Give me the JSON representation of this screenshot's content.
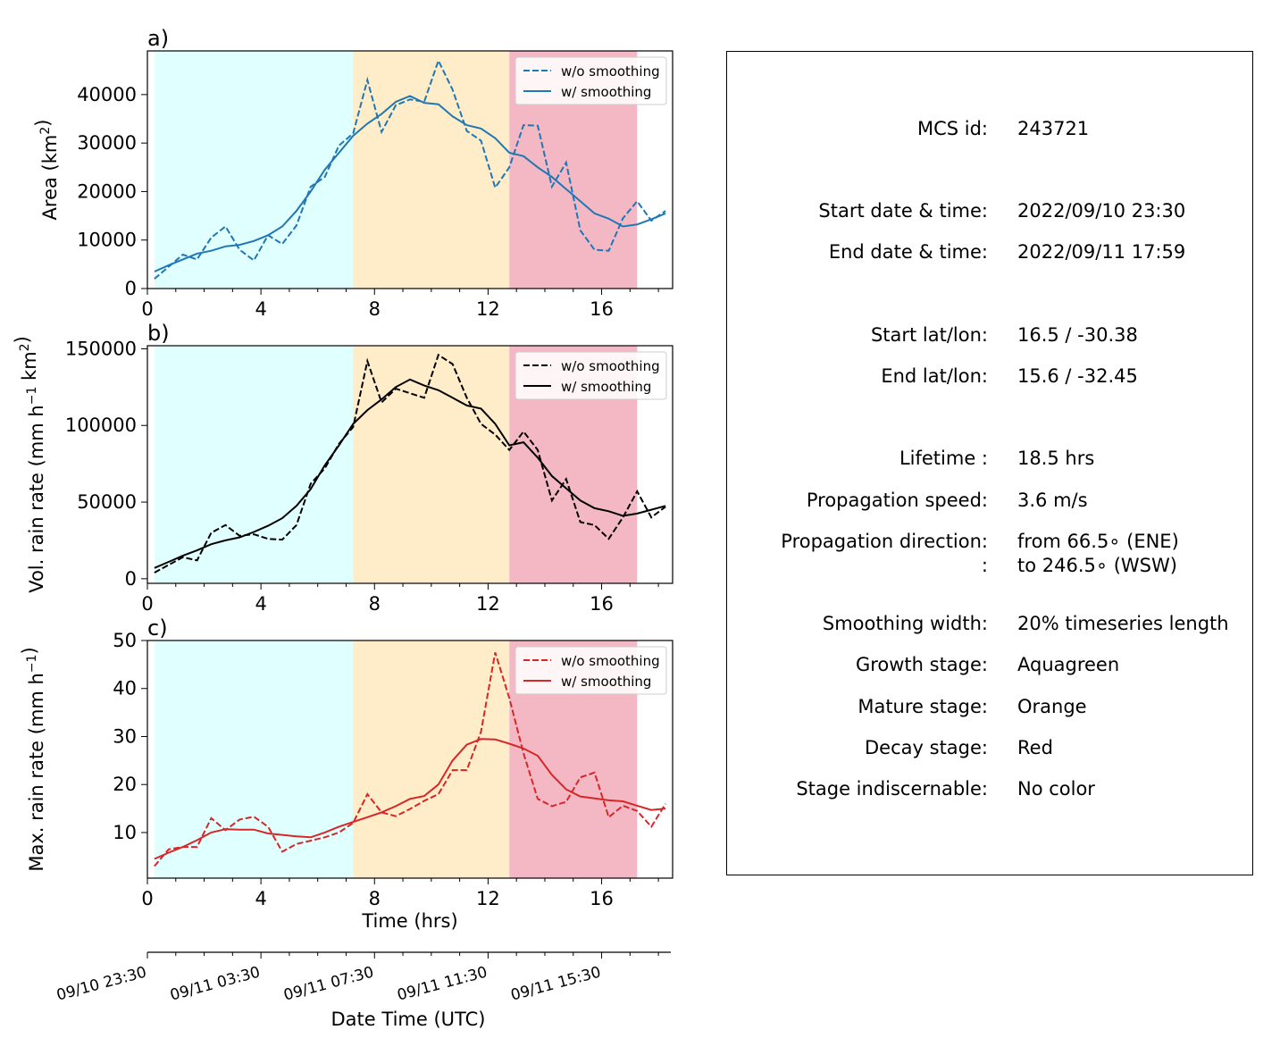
{
  "colors": {
    "growth": "#e0ffff",
    "mature": "#ffecc8",
    "decay": "#f4b8c4",
    "series_a": "#1f77b4",
    "series_b": "#000000",
    "series_c": "#d62728"
  },
  "chart_data": [
    {
      "type": "line",
      "panel_label": "a)",
      "ylabel": "Area  (km²)",
      "xlim": [
        0,
        18.5
      ],
      "ylim": [
        0,
        49000
      ],
      "yticks": [
        0,
        10000,
        20000,
        30000,
        40000
      ],
      "xticks": [
        0,
        4,
        8,
        12,
        16
      ],
      "stages": [
        {
          "name": "growth",
          "x0": 0.25,
          "x1": 7.25
        },
        {
          "name": "mature",
          "x0": 7.25,
          "x1": 12.75
        },
        {
          "name": "decay",
          "x0": 12.75,
          "x1": 17.25
        }
      ],
      "legend": "top-right",
      "series": [
        {
          "name": "w/o smoothing",
          "style": "dashed",
          "x": [
            0.25,
            0.75,
            1.25,
            1.75,
            2.25,
            2.75,
            3.25,
            3.75,
            4.25,
            4.75,
            5.25,
            5.75,
            6.25,
            6.75,
            7.25,
            7.75,
            8.25,
            8.75,
            9.25,
            9.75,
            10.25,
            10.75,
            11.25,
            11.75,
            12.25,
            12.75,
            13.25,
            13.75,
            14.25,
            14.75,
            15.25,
            15.75,
            16.25,
            16.75,
            17.25,
            17.75,
            18.25
          ],
          "y": [
            2000,
            4500,
            7000,
            6000,
            10500,
            12800,
            8000,
            5800,
            11000,
            9200,
            13000,
            21000,
            23000,
            29500,
            32000,
            43000,
            32300,
            37800,
            39000,
            38500,
            47000,
            41000,
            32500,
            30500,
            20800,
            25000,
            33700,
            33600,
            21000,
            26000,
            12000,
            8000,
            7800,
            14500,
            18000,
            14000,
            16000
          ]
        },
        {
          "name": "w/ smoothing",
          "style": "solid",
          "x": [
            0.25,
            0.75,
            1.25,
            1.75,
            2.25,
            2.75,
            3.25,
            3.75,
            4.25,
            4.75,
            5.25,
            5.75,
            6.25,
            6.75,
            7.25,
            7.75,
            8.25,
            8.75,
            9.25,
            9.75,
            10.25,
            10.75,
            11.25,
            11.75,
            12.25,
            12.75,
            13.25,
            13.75,
            14.25,
            14.75,
            15.25,
            15.75,
            16.25,
            16.75,
            17.25,
            17.75,
            18.25
          ],
          "y": [
            3500,
            4800,
            6000,
            7200,
            7800,
            8700,
            9000,
            9800,
            11000,
            12800,
            16000,
            20000,
            24500,
            28000,
            31500,
            34000,
            36000,
            38500,
            39700,
            38300,
            38000,
            35500,
            33700,
            33000,
            31000,
            28000,
            27300,
            25000,
            23000,
            20500,
            18000,
            15500,
            14400,
            12800,
            13200,
            14300,
            15500
          ]
        }
      ]
    },
    {
      "type": "line",
      "panel_label": "b)",
      "ylabel": "Vol. rain rate (mm h⁻¹ km²)",
      "xlim": [
        0,
        18.5
      ],
      "ylim": [
        -3000,
        152000
      ],
      "yticks": [
        0,
        50000,
        100000,
        150000
      ],
      "xticks": [
        0,
        4,
        8,
        12,
        16
      ],
      "stages": [
        {
          "name": "growth",
          "x0": 0.25,
          "x1": 7.25
        },
        {
          "name": "mature",
          "x0": 7.25,
          "x1": 12.75
        },
        {
          "name": "decay",
          "x0": 12.75,
          "x1": 17.25
        }
      ],
      "legend": "top-right",
      "series": [
        {
          "name": "w/o smoothing",
          "style": "dashed",
          "x": [
            0.25,
            0.75,
            1.25,
            1.75,
            2.25,
            2.75,
            3.25,
            3.75,
            4.25,
            4.75,
            5.25,
            5.75,
            6.25,
            6.75,
            7.25,
            7.75,
            8.25,
            8.75,
            9.25,
            9.75,
            10.25,
            10.75,
            11.25,
            11.75,
            12.25,
            12.75,
            13.25,
            13.75,
            14.25,
            14.75,
            15.25,
            15.75,
            16.25,
            16.75,
            17.25,
            17.75,
            18.25
          ],
          "y": [
            4000,
            9000,
            14000,
            12000,
            30000,
            35000,
            28000,
            29000,
            26000,
            25500,
            35000,
            62000,
            72000,
            88000,
            99000,
            142000,
            115000,
            124000,
            121000,
            118000,
            146000,
            140000,
            118000,
            101000,
            94000,
            84000,
            96000,
            84000,
            51000,
            65000,
            37000,
            35000,
            26000,
            40000,
            57000,
            40000,
            47000
          ]
        },
        {
          "name": "w/ smoothing",
          "style": "solid",
          "x": [
            0.25,
            0.75,
            1.25,
            1.75,
            2.25,
            2.75,
            3.25,
            3.75,
            4.25,
            4.75,
            5.25,
            5.75,
            6.25,
            6.75,
            7.25,
            7.75,
            8.25,
            8.75,
            9.25,
            9.75,
            10.25,
            10.75,
            11.25,
            11.75,
            12.25,
            12.75,
            13.25,
            13.75,
            14.25,
            14.75,
            15.25,
            15.75,
            16.25,
            16.75,
            17.25,
            17.75,
            18.25
          ],
          "y": [
            7000,
            11000,
            15000,
            18500,
            22500,
            25000,
            27000,
            30500,
            34500,
            39500,
            47500,
            58500,
            74000,
            87000,
            101000,
            110000,
            117000,
            125000,
            130000,
            126000,
            123000,
            118000,
            113000,
            111000,
            101000,
            87000,
            89000,
            79000,
            67000,
            59000,
            51000,
            46000,
            44000,
            41000,
            42500,
            45000,
            47500
          ]
        }
      ]
    },
    {
      "type": "line",
      "panel_label": "c)",
      "ylabel": "Max. rain rate  (mm h⁻¹)",
      "xlabel": "Time (hrs)",
      "xlim": [
        0,
        18.5
      ],
      "ylim": [
        0.5,
        50
      ],
      "yticks": [
        10,
        20,
        30,
        40,
        50
      ],
      "xticks": [
        0,
        4,
        8,
        12,
        16
      ],
      "stages": [
        {
          "name": "growth",
          "x0": 0.25,
          "x1": 7.25
        },
        {
          "name": "mature",
          "x0": 7.25,
          "x1": 12.75
        },
        {
          "name": "decay",
          "x0": 12.75,
          "x1": 17.25
        }
      ],
      "legend": "top-right",
      "series": [
        {
          "name": "w/o smoothing",
          "style": "dashed",
          "x": [
            0.25,
            0.75,
            1.25,
            1.75,
            2.25,
            2.75,
            3.25,
            3.75,
            4.25,
            4.75,
            5.25,
            5.75,
            6.25,
            6.75,
            7.25,
            7.75,
            8.25,
            8.75,
            9.25,
            9.75,
            10.25,
            10.75,
            11.25,
            11.75,
            12.25,
            12.75,
            13.25,
            13.75,
            14.25,
            14.75,
            15.25,
            15.75,
            16.25,
            16.75,
            17.25,
            17.75,
            18.25
          ],
          "y": [
            3,
            6.5,
            7,
            7,
            13,
            10.5,
            12.7,
            13.3,
            11.2,
            6,
            7.6,
            8.3,
            9,
            10,
            12,
            18,
            14.2,
            13.4,
            14.9,
            16.6,
            18,
            23,
            23,
            31,
            47.5,
            38,
            26.5,
            17,
            15.5,
            16.4,
            21.5,
            22.5,
            13.2,
            15.6,
            14.5,
            11.2,
            16
          ]
        },
        {
          "name": "w/ smoothing",
          "style": "solid",
          "x": [
            0.25,
            0.75,
            1.25,
            1.75,
            2.25,
            2.75,
            3.25,
            3.75,
            4.25,
            4.75,
            5.25,
            5.75,
            6.25,
            6.75,
            7.25,
            7.75,
            8.25,
            8.75,
            9.25,
            9.75,
            10.25,
            10.75,
            11.25,
            11.75,
            12.25,
            12.75,
            13.25,
            13.75,
            14.25,
            14.75,
            15.25,
            15.75,
            16.25,
            16.75,
            17.25,
            17.75,
            18.25
          ],
          "y": [
            4.5,
            5.8,
            7,
            8.4,
            10,
            10.7,
            10.6,
            10.6,
            9.8,
            9.5,
            9.2,
            9.0,
            10,
            11.2,
            12.2,
            13.2,
            14.2,
            15.5,
            17,
            17.6,
            20,
            25,
            28.3,
            29.5,
            29.4,
            28.5,
            27.5,
            26,
            22,
            19,
            17.5,
            17.1,
            16.7,
            16.5,
            15.6,
            14.7,
            15
          ]
        }
      ]
    }
  ],
  "date_axis": {
    "xlabel": "Date Time (UTC)",
    "ticks": [
      {
        "x": 0,
        "label": "09/10 23:30"
      },
      {
        "x": 4,
        "label": "09/11 03:30"
      },
      {
        "x": 8,
        "label": "09/11 07:30"
      },
      {
        "x": 12,
        "label": "09/11 11:30"
      },
      {
        "x": 16,
        "label": "09/11 15:30"
      }
    ]
  },
  "info": {
    "mcs_id_label": "MCS id:",
    "mcs_id": "243721",
    "start_label": "Start date & time:",
    "start": "2022/09/10 23:30",
    "end_label": "End date & time:",
    "end": "2022/09/11 17:59",
    "start_latlon_label": "Start lat/lon:",
    "start_latlon": "16.5 / -30.38",
    "end_latlon_label": "End lat/lon:",
    "end_latlon": "15.6 / -32.45",
    "lifetime_label": "Lifetime :",
    "lifetime": "18.5 hrs",
    "speed_label": "Propagation speed:",
    "speed": "3.6 m/s",
    "direction_label": "Propagation direction:",
    "direction_from": "from  66.5∘ (ENE)",
    "direction_label2": ":",
    "direction_to": "to   246.5∘ (WSW)",
    "smoothing_label": "Smoothing width:",
    "smoothing": "20% timeseries length",
    "growth_label": "Growth stage:",
    "growth": "Aquagreen",
    "mature_label": "Mature stage:",
    "mature": "Orange",
    "decay_label": "Decay stage:",
    "decay": "Red",
    "indisc_label": "Stage indiscernable:",
    "indisc": "No color"
  }
}
